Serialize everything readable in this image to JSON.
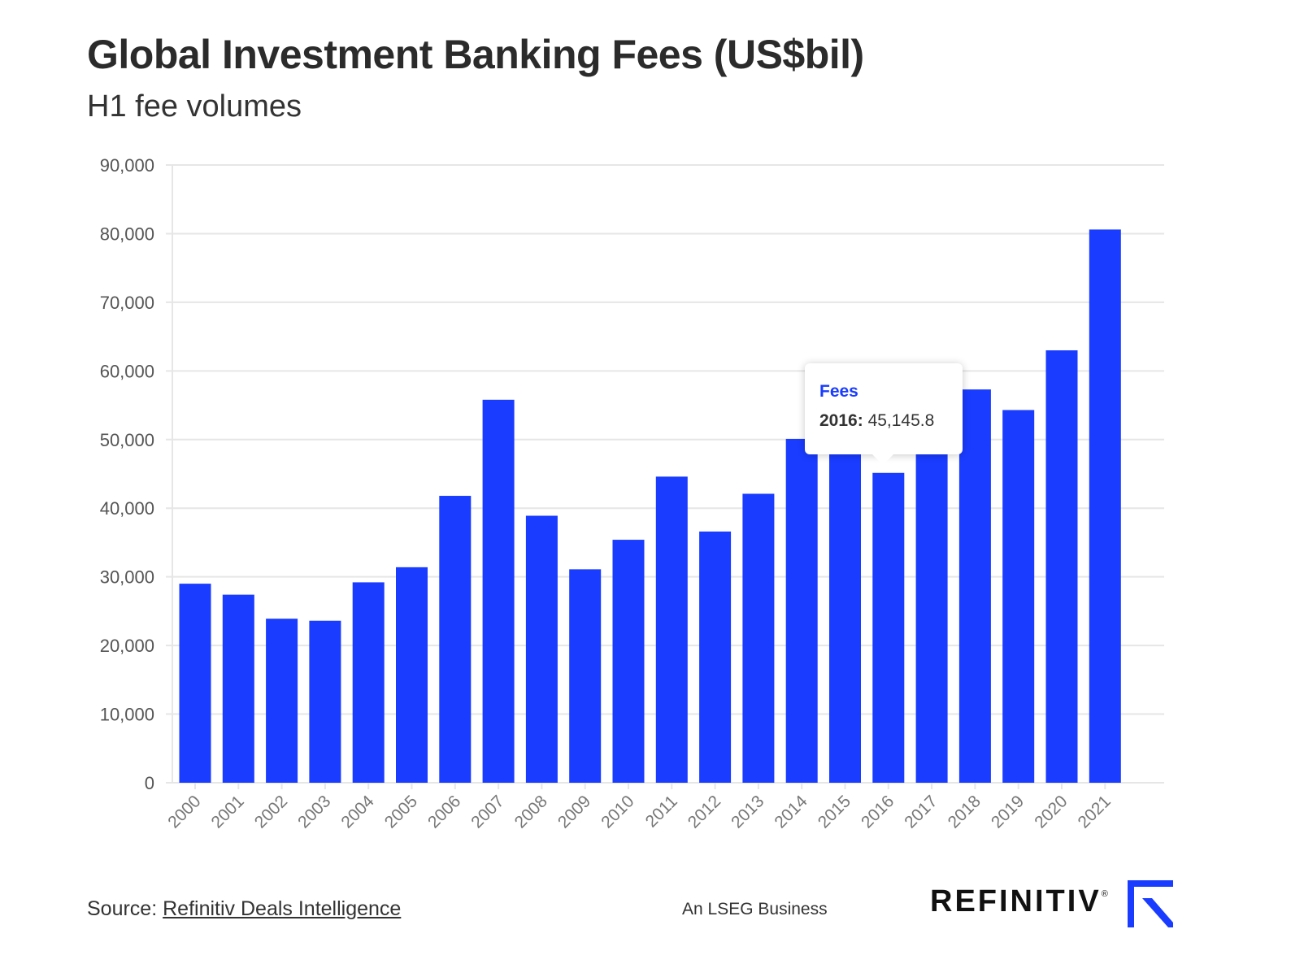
{
  "header": {
    "title": "Global Investment Banking Fees (US$bil)",
    "subtitle": "H1 fee volumes"
  },
  "chart_data": {
    "type": "bar",
    "title": "Global Investment Banking Fees (US$bil)",
    "subtitle": "H1 fee volumes",
    "xlabel": "",
    "ylabel": "",
    "ylim": [
      0,
      90000
    ],
    "yticks": [
      "0",
      "10,000",
      "20,000",
      "30,000",
      "40,000",
      "50,000",
      "60,000",
      "70,000",
      "80,000",
      "90,000"
    ],
    "grid": true,
    "categories": [
      "2000",
      "2001",
      "2002",
      "2003",
      "2004",
      "2005",
      "2006",
      "2007",
      "2008",
      "2009",
      "2010",
      "2011",
      "2012",
      "2013",
      "2014",
      "2015",
      "2016",
      "2017",
      "2018",
      "2019",
      "2020",
      "2021"
    ],
    "series": [
      {
        "name": "Fees",
        "color": "#1a3cff",
        "values": [
          29000,
          27400,
          23900,
          23600,
          29200,
          31400,
          41800,
          55800,
          38900,
          31100,
          35400,
          44600,
          36600,
          42100,
          50100,
          49500,
          45145.8,
          51500,
          57300,
          54300,
          63000,
          80600
        ]
      }
    ]
  },
  "tooltip": {
    "series": "Fees",
    "year_label": "2016:",
    "value": "45,145.8"
  },
  "footer": {
    "source_prefix": "Source:",
    "source_link": "Refinitiv Deals Intelligence",
    "lseg": "An LSEG Business",
    "brand": "REFINITIV",
    "reg_mark": "®"
  },
  "colors": {
    "bar": "#1a3cff",
    "grid": "#e6e6e6",
    "brand_mark": "#1a3cff"
  }
}
